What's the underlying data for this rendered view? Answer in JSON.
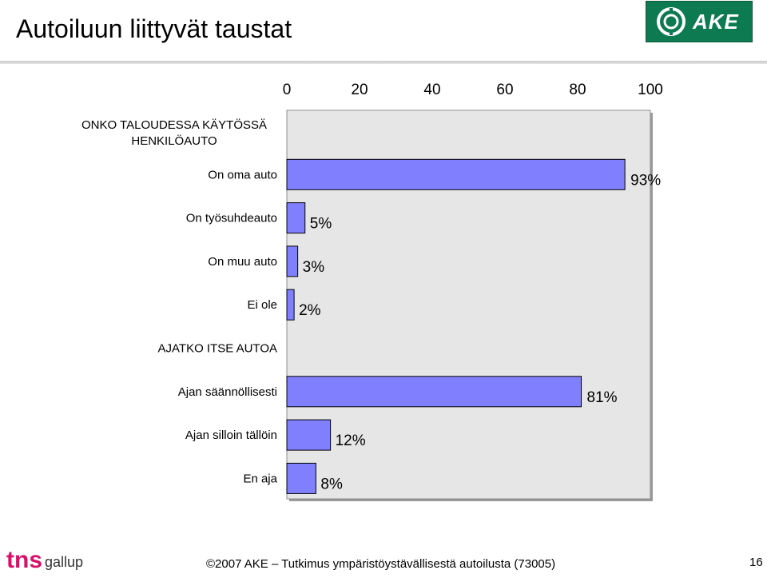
{
  "header": {
    "title": "Autoiluun liittyvät taustat",
    "logo_text": "AKE"
  },
  "chart_data": {
    "type": "bar",
    "orientation": "horizontal",
    "x_ticks": [
      "0",
      "20",
      "40",
      "60",
      "80",
      "100"
    ],
    "xlim": [
      0,
      100
    ],
    "bar_color": "#8080ff",
    "plot_background": "#e6e6e6",
    "groups": [
      {
        "heading": "ONKO TALOUDESSA KÄYTÖSSÄ HENKILÖAUTO",
        "categories": [
          "On oma auto",
          "On työsuhdeauto",
          "On muu auto",
          "Ei ole"
        ],
        "values": [
          93,
          5,
          3,
          2
        ],
        "labels": [
          "93%",
          "5%",
          "3%",
          "2%"
        ]
      },
      {
        "heading": "AJATKO ITSE AUTOA",
        "categories": [
          "Ajan säännöllisesti",
          "Ajan silloin tällöin",
          "En aja"
        ],
        "values": [
          81,
          12,
          8
        ],
        "labels": [
          "81%",
          "12%",
          "8%"
        ]
      }
    ]
  },
  "footer": {
    "logo_text": "gallup",
    "logo_prefix": "tns",
    "text": "©2007 AKE – Tutkimus ympäristöystävällisestä autoilusta (73005)",
    "page_number": "16"
  }
}
